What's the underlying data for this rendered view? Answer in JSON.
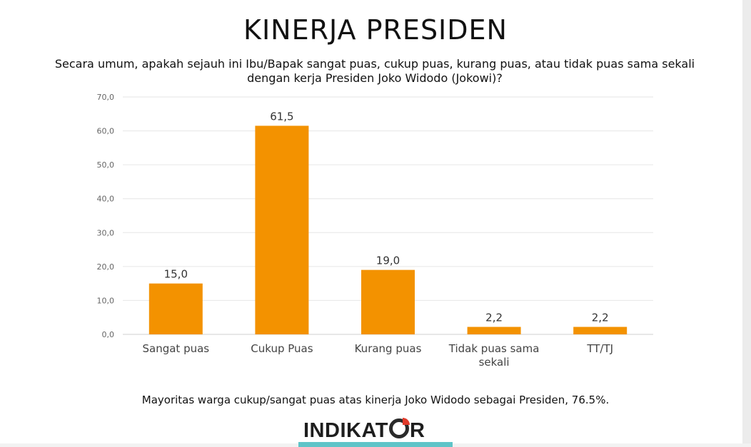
{
  "header": {
    "title": "KINERJA PRESIDEN",
    "subtitle": "Secara umum, apakah sejauh ini Ibu/Bapak sangat puas, cukup puas, kurang puas, atau tidak puas sama sekali dengan kerja Presiden Joko Widodo (Jokowi)?"
  },
  "chart_data": {
    "type": "bar",
    "categories": [
      "Sangat puas",
      "Cukup Puas",
      "Kurang puas",
      "Tidak puas sama sekali",
      "TT/TJ"
    ],
    "values": [
      15.0,
      61.5,
      19.0,
      2.2,
      2.2
    ],
    "data_labels": [
      "15,0",
      "61,5",
      "19,0",
      "2,2",
      "2,2"
    ],
    "yticks": [
      "0,0",
      "10,0",
      "20,0",
      "30,0",
      "40,0",
      "50,0",
      "60,0",
      "70,0"
    ],
    "ylim": [
      0,
      70
    ],
    "grid": true,
    "bar_color": "#f39200"
  },
  "footnote": "Mayoritas warga cukup/sangat puas atas kinerja Joko Widodo sebagai Presiden, 76.5%.",
  "logo": {
    "text_before": "INDIKAT",
    "text_after": "R"
  }
}
